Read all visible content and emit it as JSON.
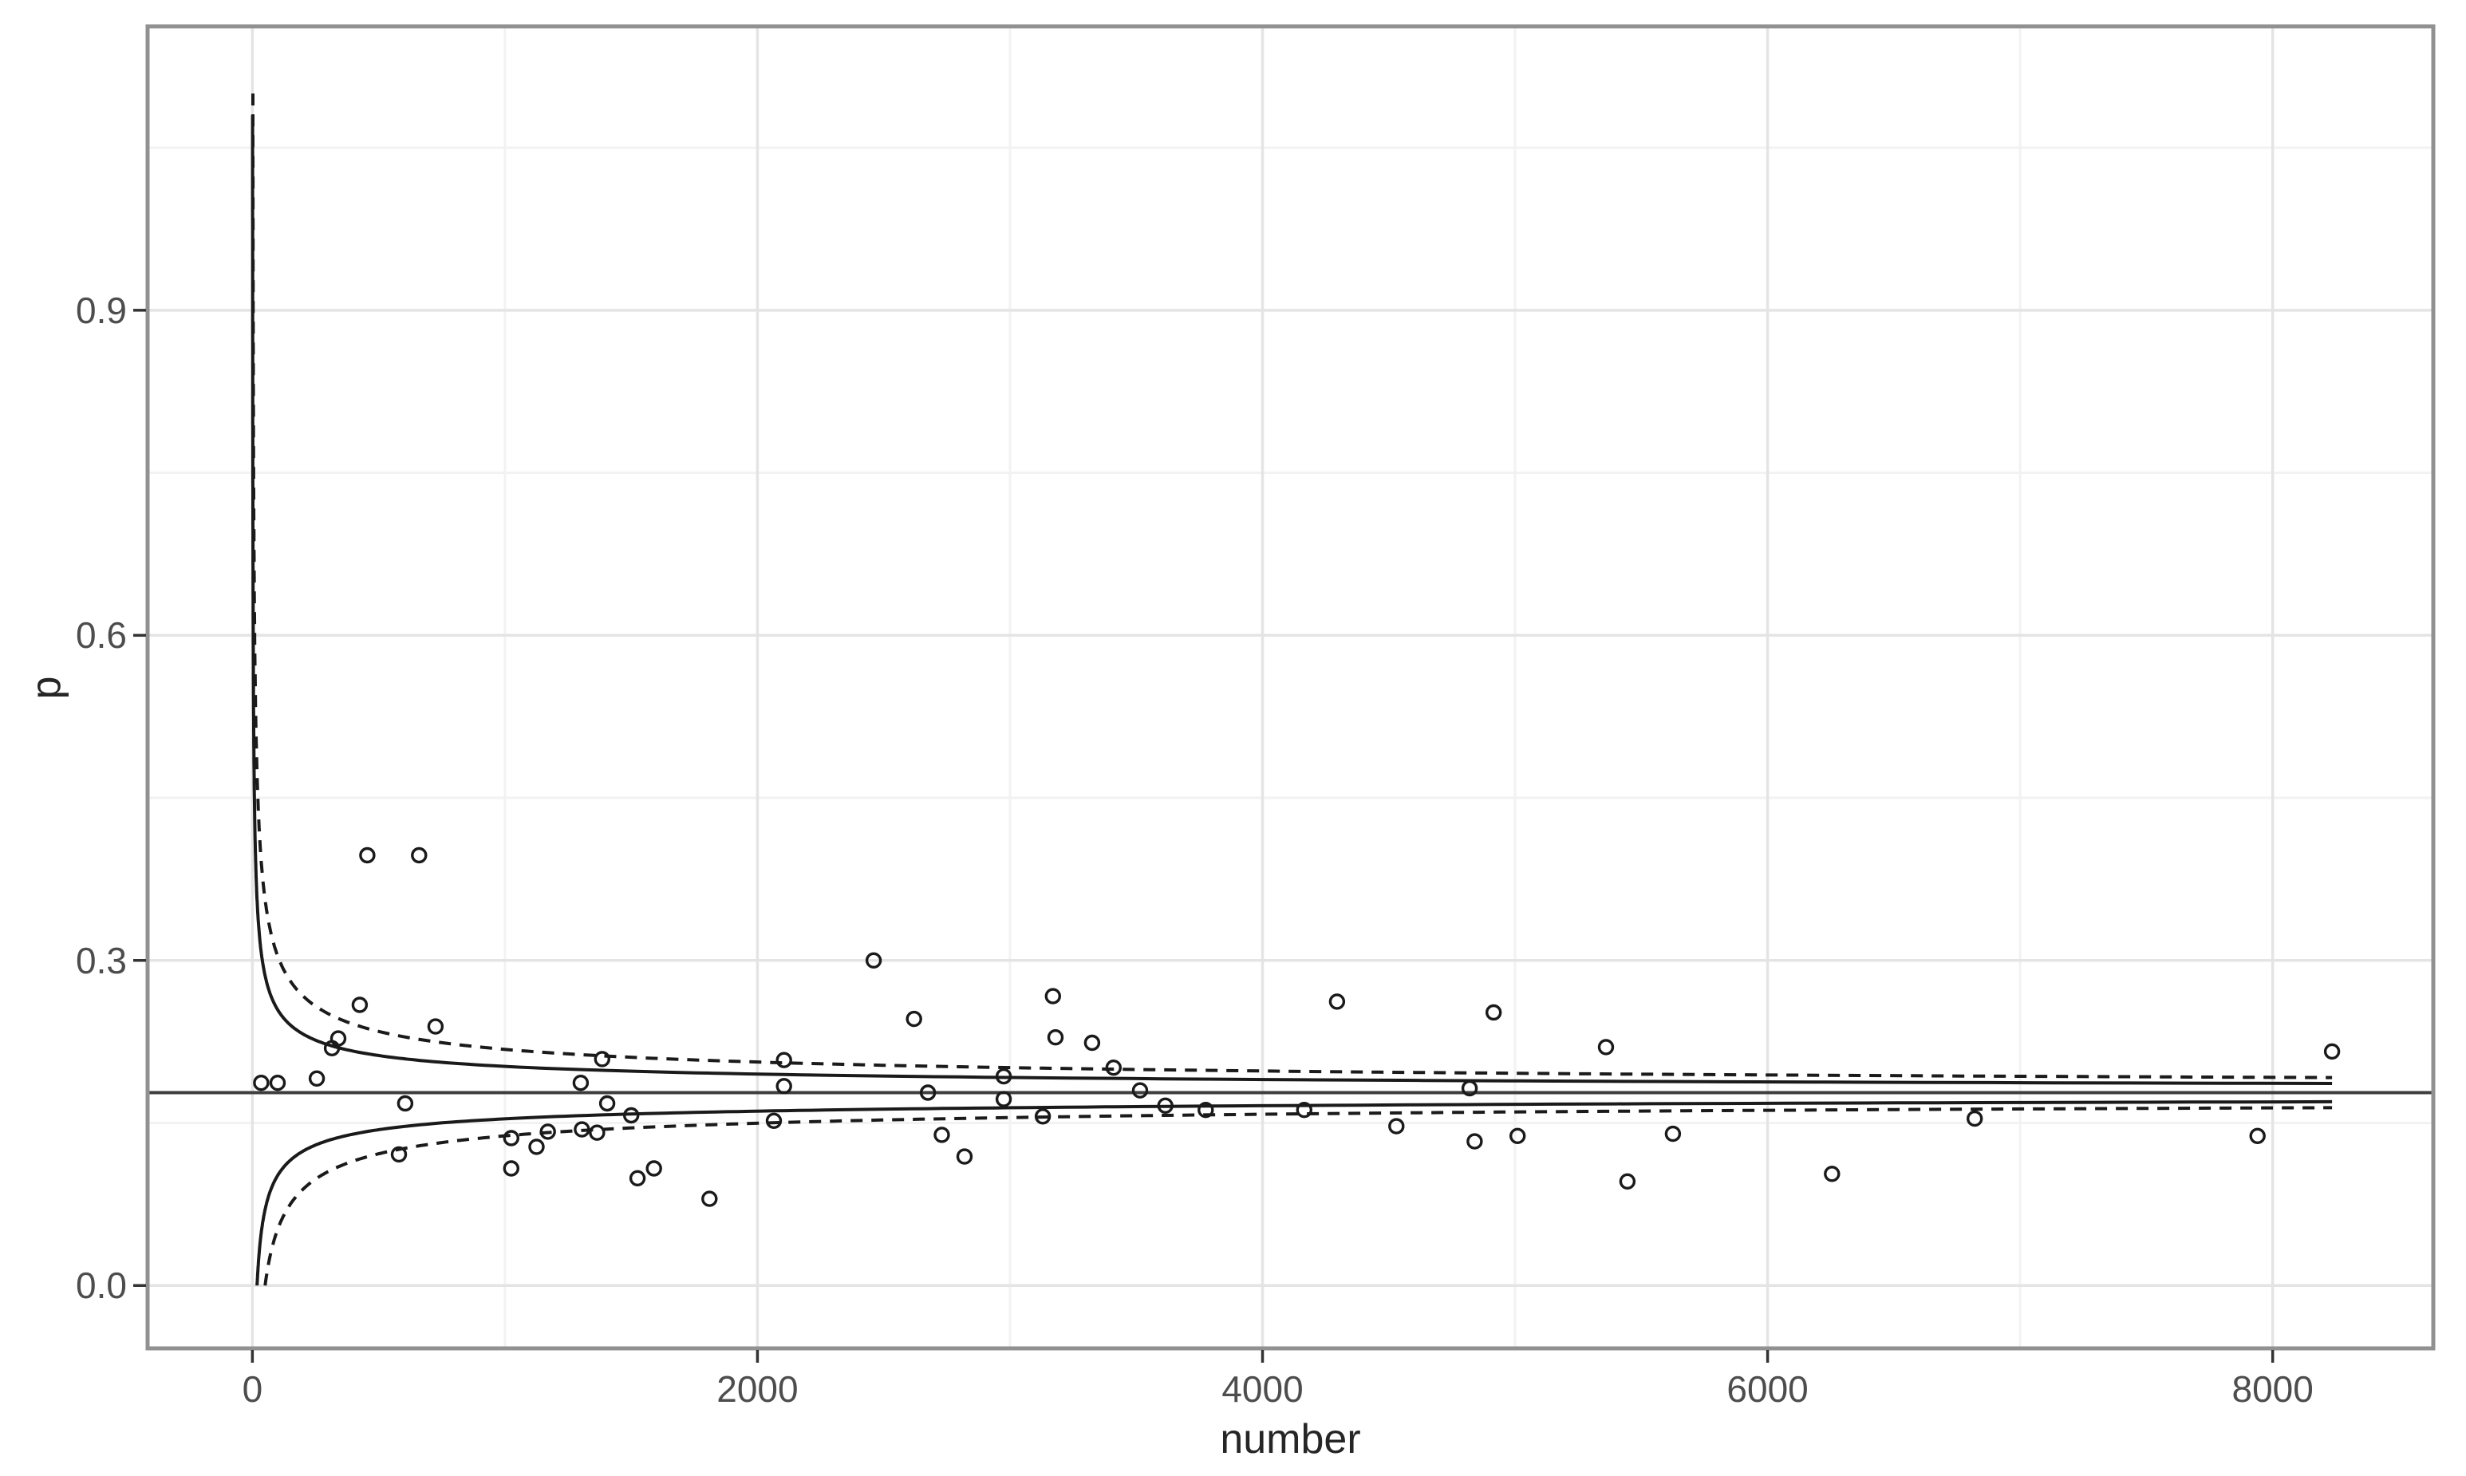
{
  "chart_data": {
    "type": "scatter",
    "title": "",
    "xlabel": "number",
    "ylabel": "p",
    "x_ticks": [
      0,
      2000,
      4000,
      6000,
      8000
    ],
    "x_tick_labels": [
      "0",
      "2000",
      "4000",
      "6000",
      "8000"
    ],
    "x_minor_ticks": [
      1000,
      3000,
      5000,
      7000
    ],
    "y_ticks": [
      0.0,
      0.3,
      0.6,
      0.9
    ],
    "y_tick_labels": [
      "0.0",
      "0.3",
      "0.6",
      "0.9"
    ],
    "y_minor_ticks": [
      0.15,
      0.45,
      0.75,
      1.05
    ],
    "xlim": [
      -415,
      8636
    ],
    "ylim": [
      -0.058,
      1.162
    ],
    "grid": "on",
    "legend": "none",
    "center_line_p": 0.178,
    "funnel": {
      "p0": 0.178,
      "z_solid": 2.0,
      "z_dashed": 3.3,
      "n_end": 8235,
      "upper_clamp_solid": 1.08,
      "upper_clamp_dashed": 1.1
    },
    "points": [
      [
        35,
        0.187
      ],
      [
        100,
        0.187
      ],
      [
        255,
        0.191
      ],
      [
        315,
        0.219
      ],
      [
        340,
        0.228
      ],
      [
        425,
        0.259
      ],
      [
        455,
        0.397
      ],
      [
        660,
        0.397
      ],
      [
        580,
        0.121
      ],
      [
        605,
        0.168
      ],
      [
        725,
        0.239
      ],
      [
        1025,
        0.136
      ],
      [
        1025,
        0.108
      ],
      [
        1125,
        0.128
      ],
      [
        1170,
        0.142
      ],
      [
        1300,
        0.187
      ],
      [
        1305,
        0.144
      ],
      [
        1365,
        0.141
      ],
      [
        1385,
        0.209
      ],
      [
        1405,
        0.168
      ],
      [
        1500,
        0.157
      ],
      [
        1525,
        0.099
      ],
      [
        1590,
        0.108
      ],
      [
        1810,
        0.08
      ],
      [
        2065,
        0.152
      ],
      [
        2105,
        0.208
      ],
      [
        2105,
        0.184
      ],
      [
        2460,
        0.3
      ],
      [
        2620,
        0.246
      ],
      [
        2675,
        0.178
      ],
      [
        2730,
        0.139
      ],
      [
        2820,
        0.119
      ],
      [
        2975,
        0.193
      ],
      [
        2975,
        0.172
      ],
      [
        3130,
        0.156
      ],
      [
        3170,
        0.267
      ],
      [
        3180,
        0.229
      ],
      [
        3325,
        0.224
      ],
      [
        3410,
        0.201
      ],
      [
        3515,
        0.18
      ],
      [
        3615,
        0.166
      ],
      [
        3775,
        0.162
      ],
      [
        4165,
        0.162
      ],
      [
        4295,
        0.262
      ],
      [
        4530,
        0.147
      ],
      [
        4820,
        0.182
      ],
      [
        4840,
        0.133
      ],
      [
        4915,
        0.252
      ],
      [
        5010,
        0.138
      ],
      [
        5360,
        0.22
      ],
      [
        5445,
        0.096
      ],
      [
        5625,
        0.14
      ],
      [
        6255,
        0.103
      ],
      [
        6820,
        0.154
      ],
      [
        7940,
        0.138
      ],
      [
        8235,
        0.216
      ]
    ],
    "colors": {
      "point_stroke": "#1a1a1a",
      "funnel_line": "#1a1a1a",
      "center_line": "#3d3d3d",
      "grid_major": "#e4e4e4",
      "grid_minor": "#f2f2f2",
      "panel_border": "#919191",
      "tick_mark": "#333333",
      "tick_text": "#4d4d4d",
      "title_text": "#262626",
      "background": "#ffffff"
    }
  }
}
